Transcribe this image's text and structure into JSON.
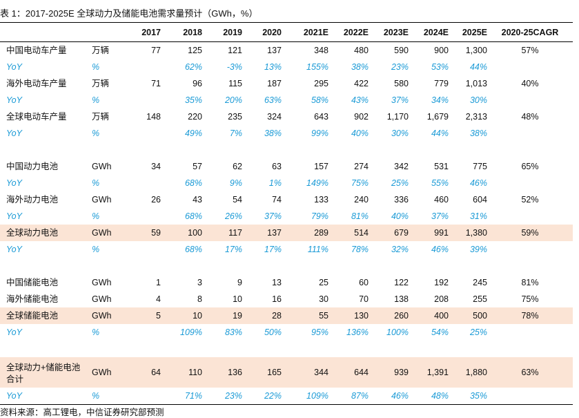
{
  "title": "表 1：2017-2025E 全球动力及储能电池需求量预计（GWh，%）",
  "headers": [
    "",
    "",
    "2017",
    "2018",
    "2019",
    "2020",
    "2021E",
    "2022E",
    "2023E",
    "2024E",
    "2025E",
    "2020-25CAGR"
  ],
  "rows": [
    {
      "type": "data",
      "label": "中国电动车产量",
      "unit": "万辆",
      "values": [
        "77",
        "125",
        "121",
        "137",
        "348",
        "480",
        "590",
        "900",
        "1,300"
      ],
      "cagr": "57%"
    },
    {
      "type": "yoy",
      "label": "YoY",
      "unit": "%",
      "values": [
        "",
        "62%",
        "-3%",
        "13%",
        "155%",
        "38%",
        "23%",
        "53%",
        "44%"
      ],
      "cagr": ""
    },
    {
      "type": "data",
      "label": "海外电动车产量",
      "unit": "万辆",
      "values": [
        "71",
        "96",
        "115",
        "187",
        "295",
        "422",
        "580",
        "779",
        "1,013"
      ],
      "cagr": "40%"
    },
    {
      "type": "yoy",
      "label": "YoY",
      "unit": "%",
      "values": [
        "",
        "35%",
        "20%",
        "63%",
        "58%",
        "43%",
        "37%",
        "34%",
        "30%"
      ],
      "cagr": ""
    },
    {
      "type": "data",
      "label": "全球电动车产量",
      "unit": "万辆",
      "values": [
        "148",
        "220",
        "235",
        "324",
        "643",
        "902",
        "1,170",
        "1,679",
        "2,313"
      ],
      "cagr": "48%"
    },
    {
      "type": "yoy",
      "label": "YoY",
      "unit": "%",
      "values": [
        "",
        "49%",
        "7%",
        "38%",
        "99%",
        "40%",
        "30%",
        "44%",
        "38%"
      ],
      "cagr": ""
    },
    {
      "type": "spacer"
    },
    {
      "type": "data",
      "label": "中国动力电池",
      "unit": "GWh",
      "values": [
        "34",
        "57",
        "62",
        "63",
        "157",
        "274",
        "342",
        "531",
        "775"
      ],
      "cagr": "65%"
    },
    {
      "type": "yoy",
      "label": "YoY",
      "unit": "%",
      "values": [
        "",
        "68%",
        "9%",
        "1%",
        "149%",
        "75%",
        "25%",
        "55%",
        "46%"
      ],
      "cagr": ""
    },
    {
      "type": "data",
      "label": "海外动力电池",
      "unit": "GWh",
      "values": [
        "26",
        "43",
        "54",
        "74",
        "133",
        "240",
        "336",
        "460",
        "604"
      ],
      "cagr": "52%"
    },
    {
      "type": "yoy",
      "label": "YoY",
      "unit": "%",
      "values": [
        "",
        "68%",
        "26%",
        "37%",
        "79%",
        "81%",
        "40%",
        "37%",
        "31%"
      ],
      "cagr": ""
    },
    {
      "type": "data",
      "label": "全球动力电池",
      "unit": "GWh",
      "highlight": true,
      "values": [
        "59",
        "100",
        "117",
        "137",
        "289",
        "514",
        "679",
        "991",
        "1,380"
      ],
      "cagr": "59%"
    },
    {
      "type": "yoy",
      "label": "YoY",
      "unit": "%",
      "values": [
        "",
        "68%",
        "17%",
        "17%",
        "111%",
        "78%",
        "32%",
        "46%",
        "39%"
      ],
      "cagr": ""
    },
    {
      "type": "spacer"
    },
    {
      "type": "data",
      "label": "中国储能电池",
      "unit": "GWh",
      "values": [
        "1",
        "3",
        "9",
        "13",
        "25",
        "60",
        "122",
        "192",
        "245"
      ],
      "cagr": "81%"
    },
    {
      "type": "data",
      "label": "海外储能电池",
      "unit": "GWh",
      "values": [
        "4",
        "8",
        "10",
        "16",
        "30",
        "70",
        "138",
        "208",
        "255"
      ],
      "cagr": "75%"
    },
    {
      "type": "data",
      "label": "全球储能电池",
      "unit": "GWh",
      "highlight": true,
      "values": [
        "5",
        "10",
        "19",
        "28",
        "55",
        "130",
        "260",
        "400",
        "500"
      ],
      "cagr": "78%"
    },
    {
      "type": "yoy",
      "label": "YoY",
      "unit": "%",
      "values": [
        "",
        "109%",
        "83%",
        "50%",
        "95%",
        "136%",
        "100%",
        "54%",
        "25%"
      ],
      "cagr": ""
    },
    {
      "type": "spacer"
    },
    {
      "type": "data",
      "label": "全球动力+储能电池合计",
      "unit": "GWh",
      "highlight": true,
      "tall": true,
      "values": [
        "64",
        "110",
        "136",
        "165",
        "344",
        "644",
        "939",
        "1,391",
        "1,880"
      ],
      "cagr": "63%"
    },
    {
      "type": "yoy",
      "label": "YoY",
      "unit": "%",
      "values": [
        "",
        "71%",
        "23%",
        "22%",
        "109%",
        "87%",
        "46%",
        "48%",
        "35%"
      ],
      "cagr": ""
    }
  ],
  "source": "资料来源：高工锂电，中信证券研究部预测"
}
